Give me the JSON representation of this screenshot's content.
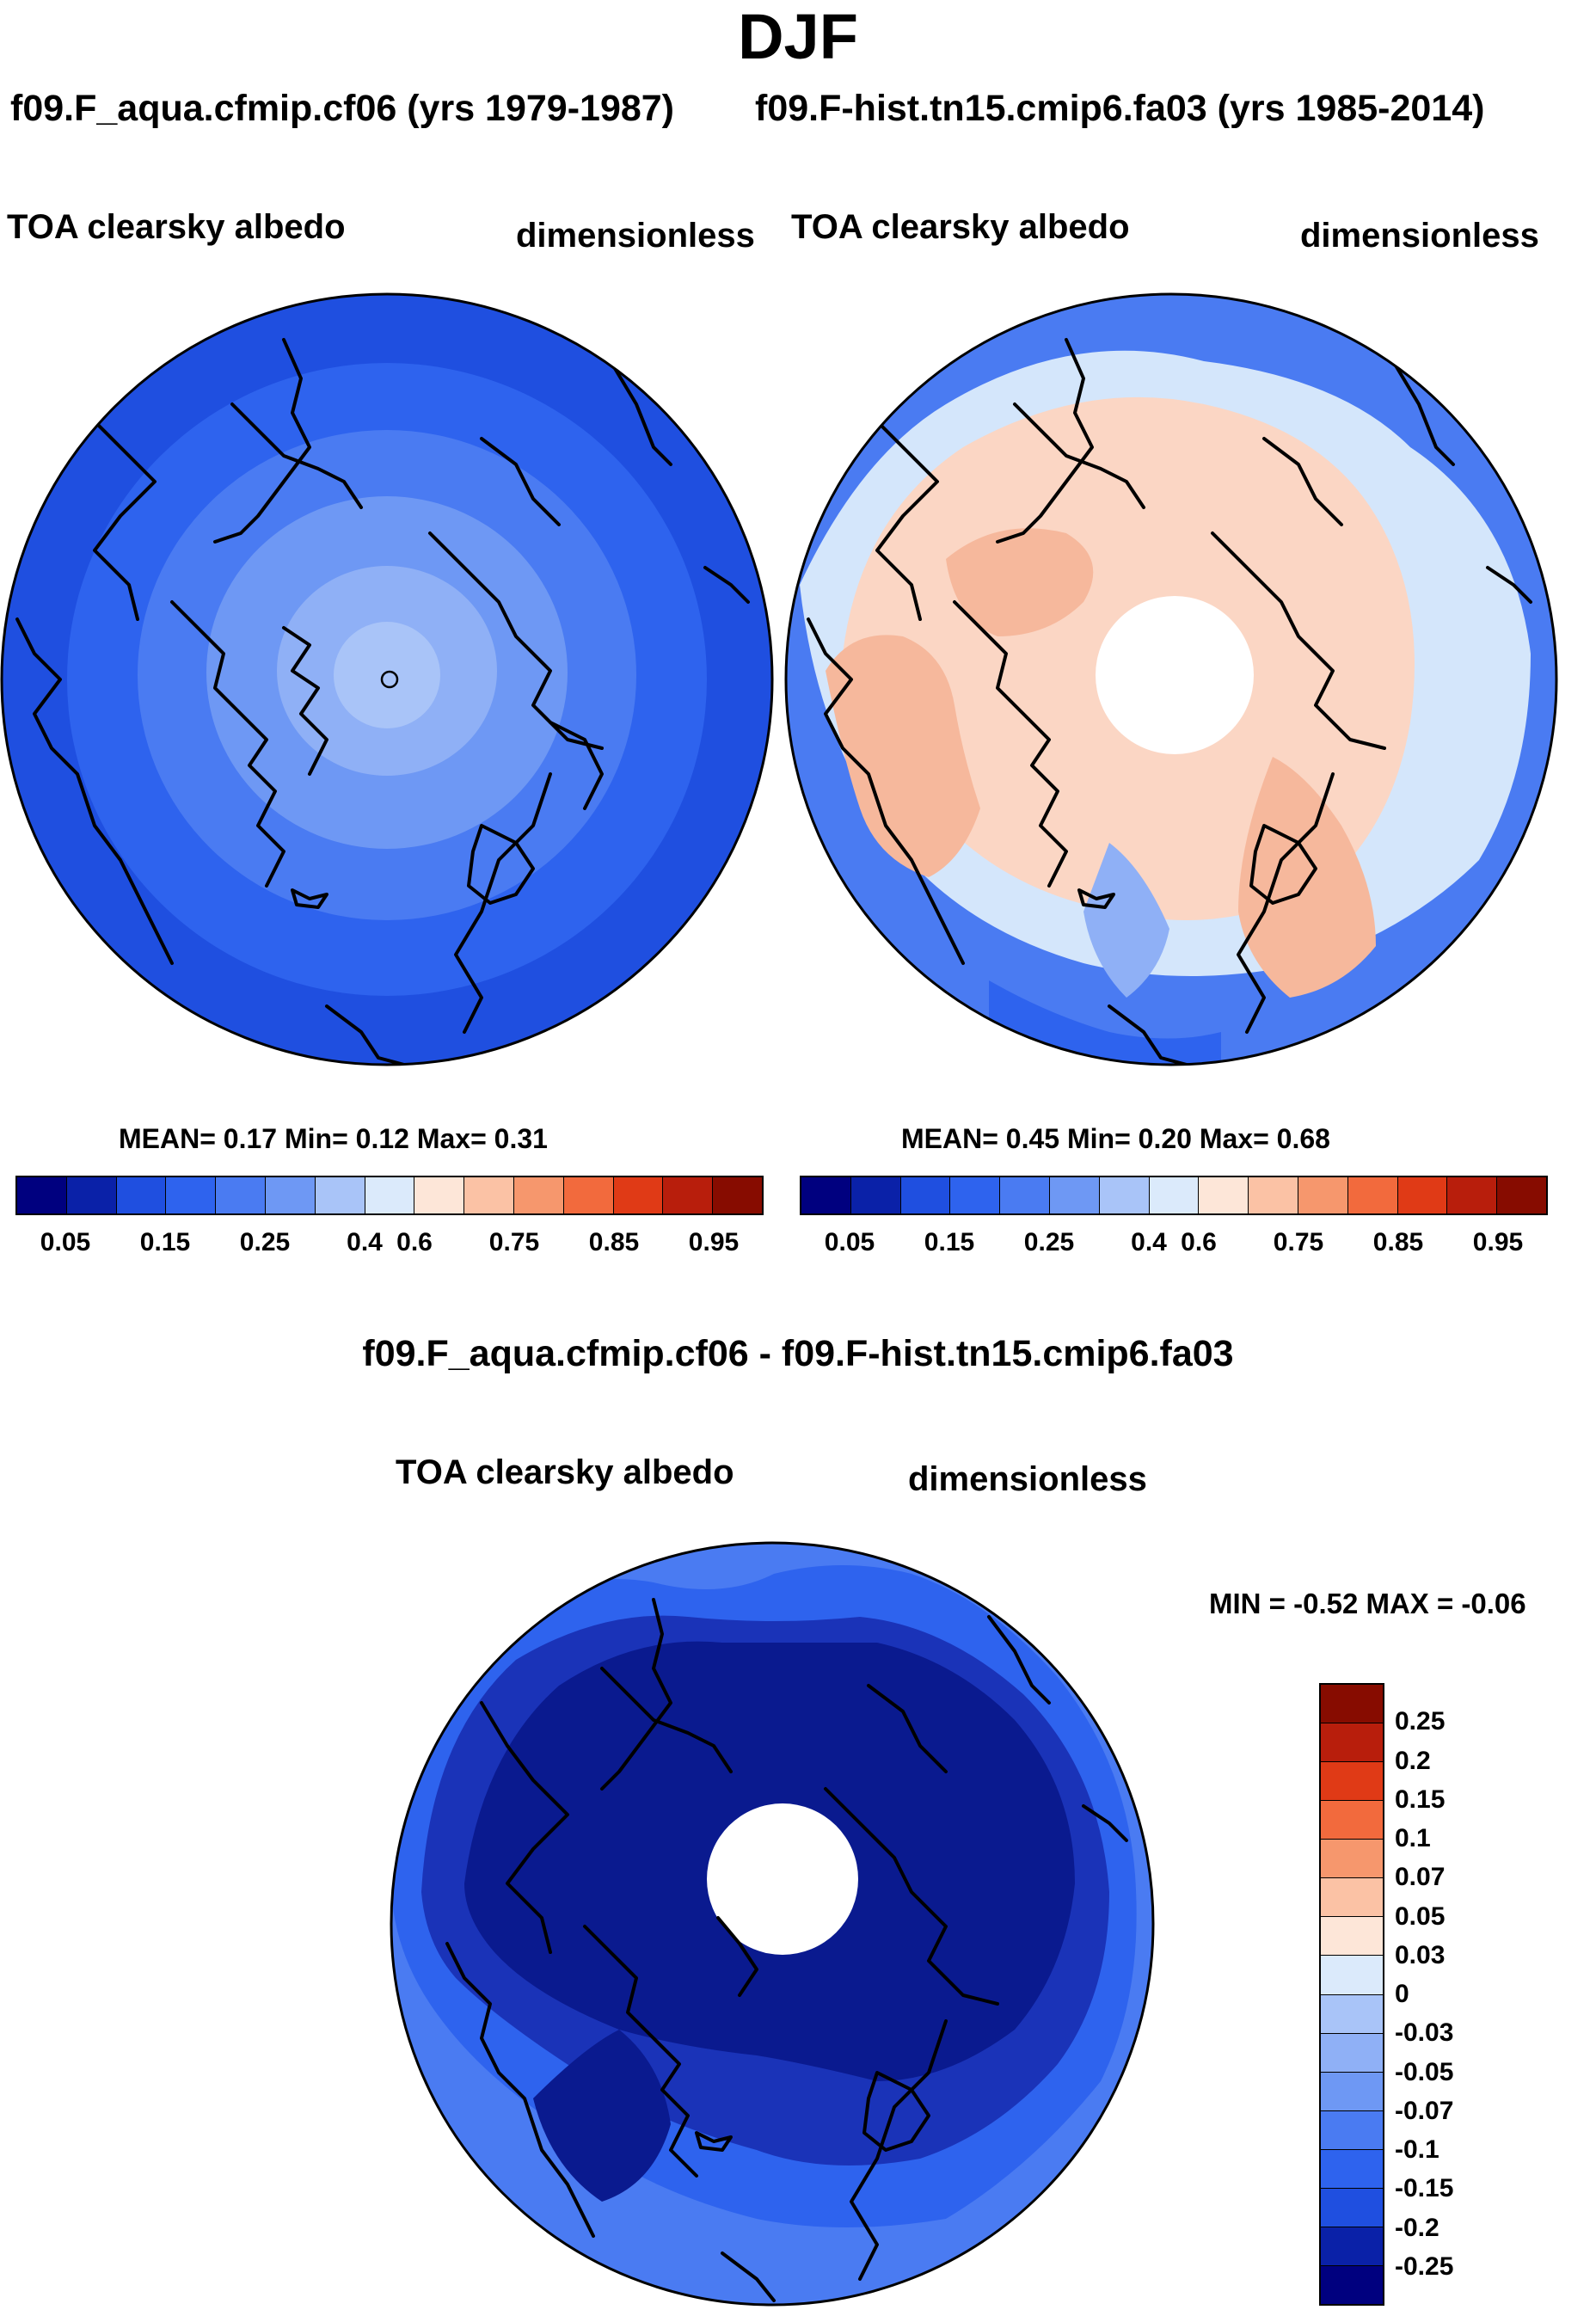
{
  "title": "DJF",
  "panels": [
    {
      "case": "f09.F_aqua.cfmip.cf06 (yrs 1979-1987)",
      "variable": "TOA clearsky albedo",
      "units": "dimensionless",
      "stats": "MEAN=   0.17  Min=    0.12  Max=    0.31",
      "colors": {
        "outer": "#1f4fe0",
        "ring1": "#2e63ee",
        "ring2": "#4a7bf2",
        "ring3": "#6e98f4",
        "ring4": "#8fb0f6",
        "center": "#a9c4f8"
      }
    },
    {
      "case": "f09.F-hist.tn15.cmip6.fa03 (yrs 1985-2014)",
      "variable": "TOA clearsky albedo",
      "units": "dimensionless",
      "stats": "MEAN=   0.45  Min=    0.20  Max=    0.68",
      "colors": {
        "outer": "#4a7bf2",
        "sea": "#2e63ee",
        "ice": "#fbd6c4",
        "land": "#f6b89c",
        "pale": "#d4e6fb",
        "mid": "#8fb0f6"
      }
    }
  ],
  "colorbar": {
    "colors": [
      "#00007f",
      "#0a21a8",
      "#1f4fe0",
      "#2e63ee",
      "#4a7bf2",
      "#6e98f4",
      "#a9c4f8",
      "#dbeafb",
      "#fde6d8",
      "#fbc2a5",
      "#f6976d",
      "#f26a3d",
      "#e03a16",
      "#b81e0c",
      "#870c00"
    ],
    "ticks": [
      "0.05",
      "0.15",
      "0.25",
      "0.4",
      "0.6",
      "0.75",
      "0.85",
      "0.95"
    ]
  },
  "difference": {
    "title": "f09.F_aqua.cfmip.cf06 - f09.F-hist.tn15.cmip6.fa03",
    "variable": "TOA clearsky albedo",
    "units": "dimensionless",
    "minmax": "MIN =  -0.52 MAX =  -0.06",
    "colors": {
      "deep": "#0a1a8f",
      "dark": "#1a33b8",
      "mid": "#2e63ee",
      "light": "#4a7bf2"
    },
    "colorbar": {
      "colors": [
        "#870c00",
        "#b81e0c",
        "#e03a16",
        "#f26a3d",
        "#f6976d",
        "#fbc2a5",
        "#fde6d8",
        "#dbeafb",
        "#a9c4f8",
        "#8fb0f6",
        "#6e98f4",
        "#4a7bf2",
        "#2e63ee",
        "#1f4fe0",
        "#0a21a8",
        "#00007f"
      ],
      "ticks": [
        "0.25",
        "0.2",
        "0.15",
        "0.1",
        "0.07",
        "0.05",
        "0.03",
        "0",
        "-0.03",
        "-0.05",
        "-0.07",
        "-0.1",
        "-0.15",
        "-0.2",
        "-0.25"
      ]
    }
  }
}
